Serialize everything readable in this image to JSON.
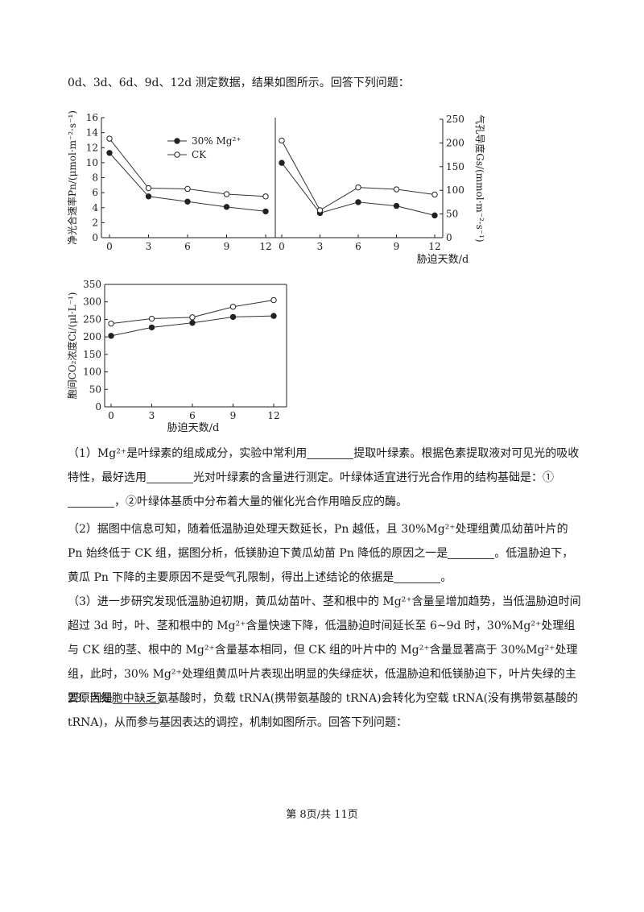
{
  "intro": "0d、3d、6d、9d、12d 测定数据，结果如图所示。回答下列问题：",
  "chart_data": [
    {
      "type": "line",
      "x": [
        0,
        3,
        6,
        9,
        12
      ],
      "xticks": [
        "0",
        "3",
        "6",
        "9",
        "12"
      ],
      "ylabel": "净光合速率Pn/(μmol·m⁻²·s⁻¹)",
      "ylim": [
        0,
        16
      ],
      "yticks": [
        "0",
        "2",
        "4",
        "6",
        "8",
        "10",
        "12",
        "14",
        "16"
      ],
      "legend": {
        "placement": "top-center",
        "mg_label": "30% Mg²⁺",
        "ck_label": "CK"
      },
      "series": [
        {
          "name": "30% Mg²⁺",
          "marker": "filled",
          "values": [
            11.3,
            5.5,
            4.8,
            4.1,
            3.5
          ]
        },
        {
          "name": "CK",
          "marker": "open",
          "values": [
            13.2,
            6.6,
            6.5,
            5.8,
            5.5
          ]
        }
      ]
    },
    {
      "type": "line",
      "x": [
        0,
        3,
        6,
        9,
        12
      ],
      "xticks": [
        "0",
        "3",
        "6",
        "9",
        "12"
      ],
      "ylabel": "气孔导度Gs/(mmol·m⁻²·s⁻¹)",
      "xlabel": "胁迫天数/d",
      "ylim": [
        0,
        250
      ],
      "yticks": [
        "0",
        "50",
        "100",
        "150",
        "200",
        "250"
      ],
      "series": [
        {
          "name": "30% Mg²⁺",
          "marker": "filled",
          "values": [
            158,
            52,
            75,
            67,
            47
          ]
        },
        {
          "name": "CK",
          "marker": "open",
          "values": [
            205,
            58,
            106,
            102,
            91
          ]
        }
      ]
    },
    {
      "type": "line",
      "x": [
        0,
        3,
        6,
        9,
        12
      ],
      "xticks": [
        "0",
        "3",
        "6",
        "9",
        "12"
      ],
      "ylabel": "胞间CO₂浓度Ci/(μl·L⁻¹)",
      "xlabel": "胁迫天数/d",
      "ylim": [
        0,
        350
      ],
      "yticks": [
        "0",
        "50",
        "100",
        "150",
        "200",
        "250",
        "300",
        "350"
      ],
      "series": [
        {
          "name": "30% Mg²⁺",
          "marker": "filled",
          "values": [
            203,
            227,
            240,
            257,
            260
          ]
        },
        {
          "name": "CK",
          "marker": "open",
          "values": [
            238,
            252,
            256,
            286,
            305
          ]
        }
      ]
    }
  ],
  "q1": {
    "p1": "（1）Mg²⁺是叶绿素的组成成分，实验中常利用",
    "p2": "提取叶绿素。根据色素提取液对可见光的吸收特性，最好选用",
    "p3": "光对叶绿素的含量进行测定。叶绿体适宜进行光合作用的结构基础是：①",
    "p4": "，②叶绿体基质中分布着大量的催化光合作用暗反应的酶。"
  },
  "q2": {
    "p1": "（2）据图中信息可知，随着低温胁迫处理天数延长，Pn 越低，且 30%Mg²⁺处理组黄瓜幼苗叶片的 Pn 始终低于 CK 组，据图分析，低镁胁迫下黄瓜幼苗 Pn 降低的原因之一是",
    "p2": "。低温胁迫下，黄瓜 Pn 下降的主要原因不是受气孔限制，得出上述结论的依据是",
    "p3": "。"
  },
  "q3": {
    "p1": "（3）进一步研究发现低温胁迫初期，黄瓜幼苗叶、茎和根中的 Mg²⁺含量呈增加趋势，当低温胁迫时间超过 3d 时，叶、茎和根中的 Mg²⁺含量快速下降，低温胁迫时间延长至 6~9d 时，30%Mg²⁺处理组与 CK 组的茎、根中的 Mg²⁺含量基本相同，但 CK 组的叶片中的 Mg²⁺含量显著高于 30%Mg²⁺处理组，此时，30% Mg²⁺处理组黄瓜叶片表现出明显的失绿症状，低温胁迫和低镁胁迫下，叶片失绿的主要原因是",
    "p2": "。"
  },
  "q23": "23. 当细胞中缺乏氨基酸时，负载 tRNA(携带氨基酸的 tRNA)会转化为空载 tRNA(没有携带氨基酸的 tRNA)，从而参与基因表达的调控，机制如图所示。回答下列问题：",
  "footer": "第 8页/共 11页"
}
